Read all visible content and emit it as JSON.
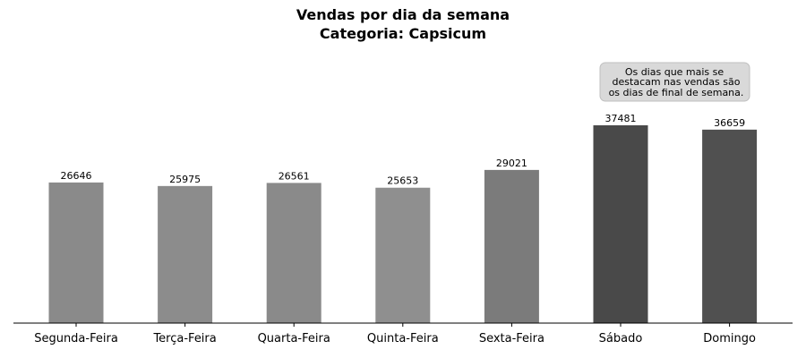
{
  "chart_data": {
    "type": "bar",
    "title": "Vendas por dia da semana",
    "subtitle": "Categoria: Capsicum",
    "xlabel": "",
    "ylabel": "",
    "categories": [
      "Segunda-Feira",
      "Terça-Feira",
      "Quarta-Feira",
      "Quinta-Feira",
      "Sexta-Feira",
      "Sábado",
      "Domingo"
    ],
    "values": [
      26646,
      25975,
      26561,
      25653,
      29021,
      37481,
      36659
    ],
    "bar_colors": [
      "#8a8a8a",
      "#8c8c8c",
      "#8a8a8a",
      "#8f8f8f",
      "#7b7b7b",
      "#494949",
      "#505050"
    ],
    "ylim": [
      0,
      50000
    ],
    "grid": false,
    "y_axis_visible": false,
    "annotation": {
      "lines": [
        "Os dias que mais se",
        "destacam nas vendas são",
        "os dias de final de semana."
      ],
      "box_color": "#d9d9d9",
      "placement": "top-right"
    }
  }
}
